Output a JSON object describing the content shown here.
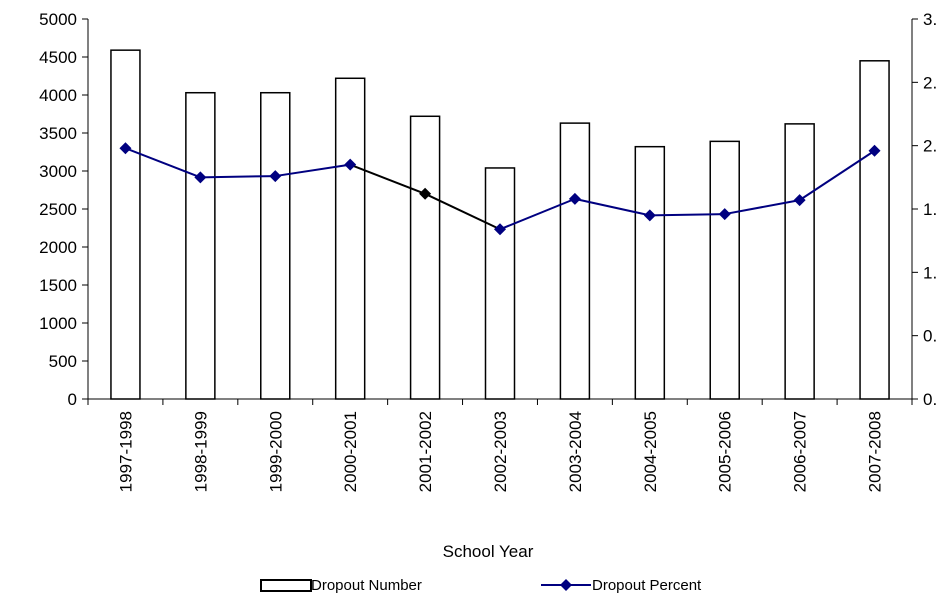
{
  "chart_data": {
    "type": "bar+line",
    "title": "",
    "xlabel": "School Year",
    "categories": [
      "1997-1998",
      "1998-1999",
      "1999-2000",
      "2000-2001",
      "2001-2002",
      "2002-2003",
      "2003-2004",
      "2004-2005",
      "2005-2006",
      "2006-2007",
      "2007-2008"
    ],
    "series": [
      {
        "name": "Dropout Number",
        "kind": "bar",
        "axis": "left",
        "values": [
          4590,
          4030,
          4030,
          4220,
          3720,
          3040,
          3630,
          3320,
          3390,
          3620,
          4450
        ]
      },
      {
        "name": "Dropout Percent",
        "kind": "line",
        "axis": "right",
        "values": [
          1.98,
          1.75,
          1.76,
          1.85,
          1.62,
          1.34,
          1.58,
          1.45,
          1.46,
          1.57,
          1.96
        ],
        "highlight_point_index": 4
      }
    ],
    "y_left": {
      "ylim": [
        0,
        5000
      ],
      "ticks": [
        "0",
        "500",
        "1000",
        "1500",
        "2000",
        "2500",
        "3000",
        "3500",
        "4000",
        "4500",
        "5000"
      ]
    },
    "y_right": {
      "ylim": [
        0,
        3
      ],
      "ticks": [
        "0.",
        "0.",
        "1.",
        "1.",
        "2.",
        "2.",
        "3."
      ]
    },
    "grid": false,
    "legend_position": "bottom"
  },
  "colors": {
    "bar_fill": "#ffffff",
    "bar_stroke": "#000000",
    "line": "#000080",
    "highlight": "#000000"
  }
}
